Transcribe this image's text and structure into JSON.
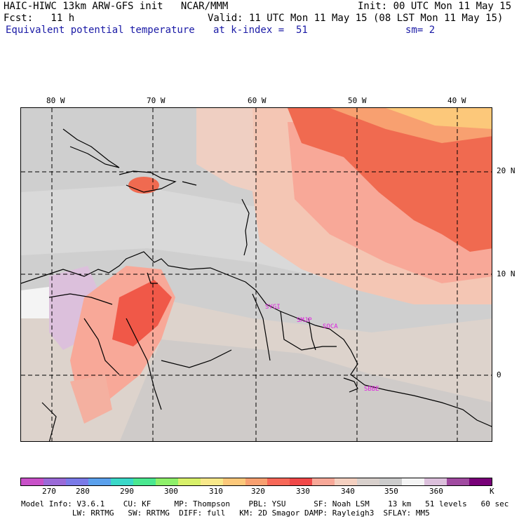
{
  "header": {
    "line1_left": "HAIC-HIWC 13km ARW-GFS init   NCAR/MMM",
    "line1_right": "Init: 00 UTC Mon 11 May 15",
    "line2_left": "Fcst:   11 h",
    "line2_right": "Valid: 11 UTC Mon 11 May 15 (08 LST Mon 11 May 15)",
    "line3_left": "Equivalent potential temperature",
    "line3_mid": "at k-index =  51",
    "line3_right": "sm= 2"
  },
  "axes": {
    "lon_labels": [
      "80 W",
      "70 W",
      "60 W",
      "50 W",
      "40 W"
    ],
    "lat_labels": [
      "20 N",
      "10 N",
      "0"
    ]
  },
  "stations": [
    "SYGI",
    "SMJP",
    "SOCA",
    "SBBE"
  ],
  "colorbar": {
    "unit": "K",
    "tick_labels": [
      "270",
      "280",
      "290",
      "300",
      "310",
      "320",
      "330",
      "340",
      "350",
      "360"
    ],
    "colors": [
      "#c850c8",
      "#9a6ad8",
      "#7a7ae8",
      "#5aa0ec",
      "#3ad8c8",
      "#4ae890",
      "#8ef06a",
      "#d8f06a",
      "#f8e88a",
      "#fcc87a",
      "#f8a070",
      "#f86858",
      "#f04848",
      "#f8a898",
      "#f4d0c0",
      "#d8d0cc",
      "#cccccc",
      "#f4f4f4",
      "#dcc0dc",
      "#a04aa0",
      "#780078"
    ]
  },
  "footer": {
    "line1": "Model Info: V3.6.1    CU: KF     MP: Thompson    PBL: YSU      SF: Noah LSM    13 km   51 levels   60 sec",
    "line2": "           LW: RRTMG   SW: RRTMG  DIFF: full   KM: 2D Smagor DAMP: Rayleigh3  SFLAY: MM5"
  }
}
